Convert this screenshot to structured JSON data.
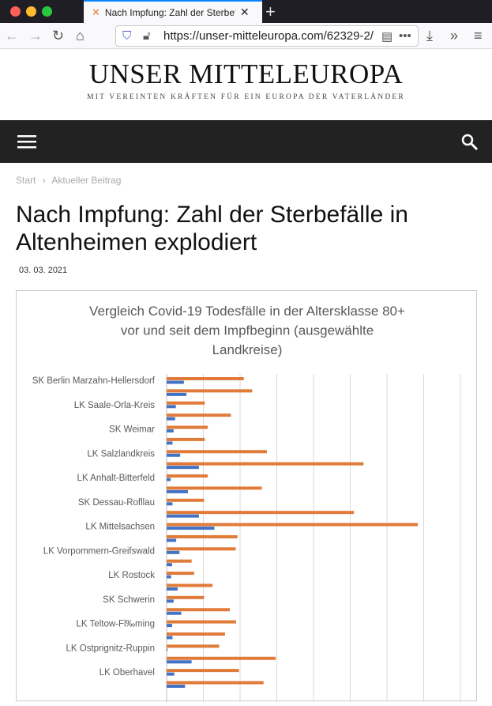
{
  "browser": {
    "tab_title": "Nach Impfung: Zahl der Sterbefälle in Altenheimen explodiert",
    "url": "https://unser-mitteleuropa.com/62329-2/"
  },
  "site": {
    "title": "UNSER MITTELEUROPA",
    "subtitle": "MIT VEREINTEN KRÄFTEN FÜR EIN EUROPA DER VATERLÄNDER"
  },
  "breadcrumb": {
    "home": "Start",
    "sep": "›",
    "current": "Aktueller Beitrag"
  },
  "article": {
    "title": "Nach Impfung: Zahl der Sterbefälle in Altenheimen explodiert",
    "date": "03. 03. 2021"
  },
  "chart_data": {
    "type": "bar",
    "orientation": "horizontal",
    "title": "Vergleich Covid-19 Todesfälle in der Altersklasse 80+ vor und seit dem Impfbeginn (ausgewählte Landkreise)",
    "title_lines": [
      "Vergleich Covid-19 Todesfälle in der Altersklasse 80+",
      "vor und seit dem Impfbeginn (ausgewählte",
      "Landkreise)"
    ],
    "categories": [
      "SK Berlin Marzahn-Hellersdorf",
      "",
      "LK Saale-Orla-Kreis",
      "",
      "SK Weimar",
      "",
      "LK Salzlandkreis",
      "",
      "LK Anhalt-Bitterfeld",
      "",
      "SK Dessau-Rofllau",
      "",
      "LK Mittelsachsen",
      "",
      "LK Vorpommern-Greifswald",
      "",
      "LK Rostock",
      "",
      "SK Schwerin",
      "",
      "LK Teltow-Fl‰ming",
      "",
      "LK Ostprignitz-Ruppin",
      "",
      "LK Oberhavel",
      ""
    ],
    "series": [
      {
        "color": "#e07b39",
        "values": [
          2.1,
          2.33,
          1.04,
          1.75,
          1.12,
          1.04,
          2.73,
          5.36,
          1.12,
          2.59,
          1.02,
          5.1,
          6.84,
          1.93,
          1.88,
          0.68,
          0.75,
          1.25,
          1.02,
          1.72,
          1.89,
          1.59,
          1.43,
          2.97,
          1.97,
          2.64
        ]
      },
      {
        "color": "#4472c4",
        "values": [
          0.47,
          0.54,
          0.25,
          0.23,
          0.19,
          0.16,
          0.37,
          0.88,
          0.11,
          0.58,
          0.16,
          0.88,
          1.3,
          0.26,
          0.35,
          0.15,
          0.12,
          0.3,
          0.19,
          0.4,
          0.15,
          0.16,
          0.02,
          0.68,
          0.21,
          0.5
        ]
      }
    ],
    "xlim": [
      0,
      8
    ],
    "grid": true
  }
}
